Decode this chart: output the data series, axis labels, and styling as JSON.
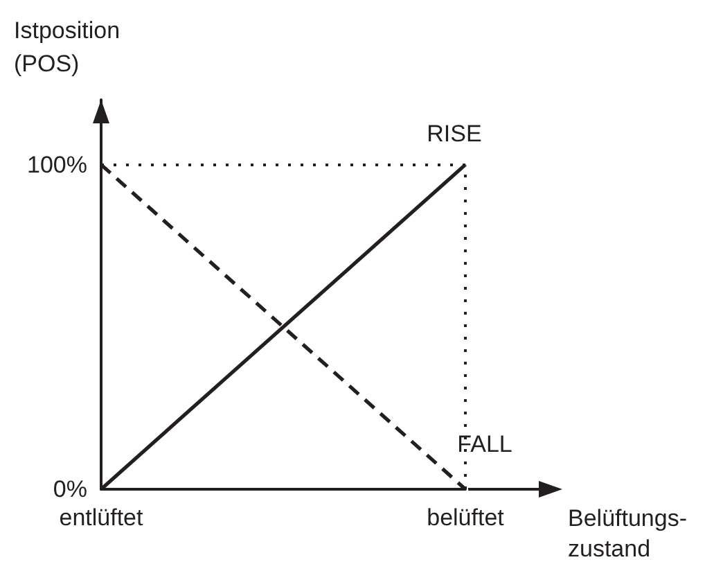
{
  "chart_data": {
    "type": "line",
    "xlabel": "Belüftungs-\nzustand",
    "ylabel": "Istposition\n(POS)",
    "categories": [
      "entlüftet",
      "belüftet"
    ],
    "ylim": [
      0,
      120
    ],
    "yticks": [
      {
        "value": 0,
        "label": "0%"
      },
      {
        "value": 100,
        "label": "100%"
      }
    ],
    "series": [
      {
        "name": "RISE",
        "color": "#231f20",
        "values": [
          0,
          100
        ],
        "line_style": "solid"
      },
      {
        "name": "FALL",
        "color": "#231f20",
        "values": [
          100,
          0
        ],
        "line_style": "dashed"
      }
    ],
    "ref_lines": [
      {
        "axis": "y",
        "value": 100,
        "color": "#231f20",
        "line_style": "dotted"
      },
      {
        "axis": "x",
        "value": "belüftet",
        "color": "#231f20",
        "line_style": "dotted"
      }
    ],
    "marker": "none",
    "grid": false,
    "legend": false
  }
}
